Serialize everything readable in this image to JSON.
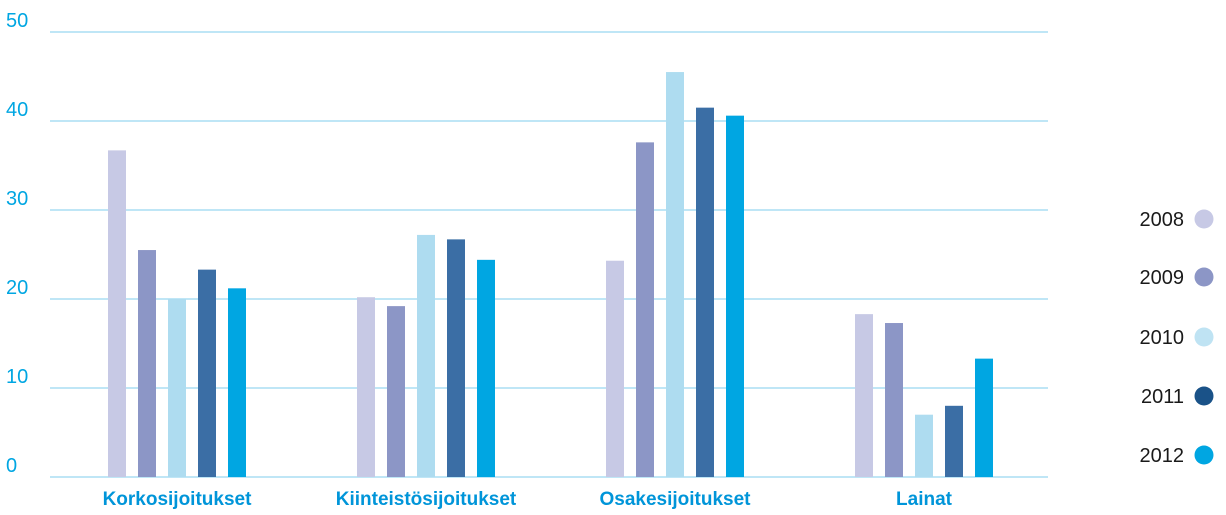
{
  "chart_data": {
    "type": "bar",
    "categories": [
      "Korkosijoitukset",
      "Kiinteistösijoitukset",
      "Osakesijoitukset",
      "Lainat"
    ],
    "series": [
      {
        "name": "2008",
        "values": [
          36.7,
          20.2,
          24.3,
          18.3
        ]
      },
      {
        "name": "2009",
        "values": [
          25.5,
          19.2,
          37.6,
          17.3
        ]
      },
      {
        "name": "2010",
        "values": [
          20.0,
          27.2,
          45.5,
          7.0
        ]
      },
      {
        "name": "2011",
        "values": [
          23.3,
          26.7,
          41.5,
          8.0
        ]
      },
      {
        "name": "2012",
        "values": [
          21.2,
          24.4,
          40.6,
          13.3
        ]
      }
    ],
    "yticks": [
      "0",
      "10",
      "20",
      "30",
      "40",
      "50"
    ],
    "ylim": [
      0,
      50
    ],
    "grid": true,
    "legend": "right",
    "colors": {
      "series": [
        "#c7c9e5",
        "#8c96c6",
        "#aedcf0",
        "#3b6ea5",
        "#00a6e2"
      ],
      "legend_markers": [
        "#c7c9e5",
        "#8c96c6",
        "#bfe3f3",
        "#1a5288",
        "#00a6e2"
      ],
      "grid": "#7fcdee",
      "tick_text": "#00a6e2",
      "category_text": "#0095d9"
    }
  }
}
